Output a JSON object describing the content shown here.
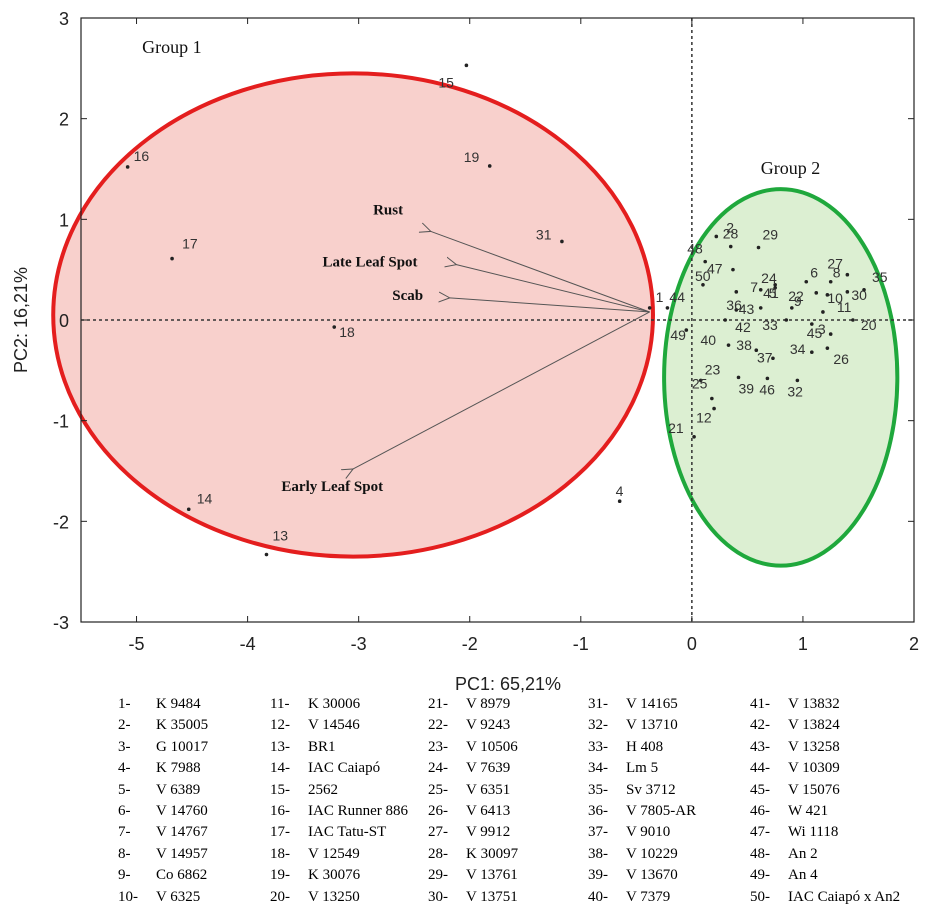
{
  "chart_data": {
    "type": "scatter",
    "xlabel": "PC1: 65,21%",
    "ylabel": "PC2: 16,21%",
    "xlim": [
      -5.5,
      2.0
    ],
    "ylim": [
      -3,
      3
    ],
    "xticks": [
      -5,
      -4,
      -3,
      -2,
      -1,
      0,
      1,
      2
    ],
    "yticks": [
      -3,
      -2,
      -1,
      0,
      1,
      2,
      3
    ],
    "colors": {
      "group1_stroke": "#e41e1e",
      "group1_fill": "#f8d0cc",
      "group2_stroke": "#1fa83c",
      "group2_fill": "#dcefd2"
    },
    "groups": [
      {
        "name": "Group 1",
        "center": [
          -3.05,
          0.05
        ],
        "radius": [
          2.7,
          2.4
        ],
        "label_at": [
          -4.95,
          2.65
        ]
      },
      {
        "name": "Group 2",
        "center": [
          0.8,
          -0.57
        ],
        "radius": [
          1.05,
          1.87
        ],
        "label_at": [
          0.62,
          1.45
        ]
      }
    ],
    "vectors": [
      {
        "name": "Rust",
        "to": [
          -2.35,
          0.88
        ],
        "label_at": [
          -2.6,
          1.05
        ]
      },
      {
        "name": "Late Leaf Spot",
        "to": [
          -2.12,
          0.55
        ],
        "label_at": [
          -2.47,
          0.53
        ]
      },
      {
        "name": "Scab",
        "to": [
          -2.18,
          0.22
        ],
        "label_at": [
          -2.42,
          0.2
        ]
      },
      {
        "name": "Early Leaf Spot",
        "to": [
          -3.05,
          -1.48
        ],
        "label_at": [
          -2.78,
          -1.7
        ]
      }
    ],
    "vector_origin": [
      -0.38,
      0.08
    ],
    "points": [
      {
        "id": "1",
        "x": -0.38,
        "y": 0.12,
        "dx": 6,
        "dy": -6
      },
      {
        "id": "2",
        "x": 0.22,
        "y": 0.83,
        "dx": 10,
        "dy": -4
      },
      {
        "id": "3",
        "x": 1.08,
        "y": -0.04,
        "dx": 6,
        "dy": 10
      },
      {
        "id": "4",
        "x": -0.65,
        "y": -1.8,
        "dx": -4,
        "dy": -5
      },
      {
        "id": "5",
        "x": 0.62,
        "y": 0.3,
        "dx": 8,
        "dy": 8
      },
      {
        "id": "6",
        "x": 1.03,
        "y": 0.38,
        "dx": 4,
        "dy": -4
      },
      {
        "id": "7",
        "x": 0.4,
        "y": 0.28,
        "dx": 14,
        "dy": 0
      },
      {
        "id": "8",
        "x": 1.25,
        "y": 0.38,
        "dx": 2,
        "dy": -4
      },
      {
        "id": "9",
        "x": 0.9,
        "y": 0.12,
        "dx": 2,
        "dy": -2
      },
      {
        "id": "10",
        "x": 1.22,
        "y": 0.25,
        "dx": 0,
        "dy": 8
      },
      {
        "id": "11",
        "x": 1.18,
        "y": 0.08,
        "dx": 14,
        "dy": 0
      },
      {
        "id": "12",
        "x": 0.2,
        "y": -0.88,
        "dx": -18,
        "dy": 14
      },
      {
        "id": "13",
        "x": -3.83,
        "y": -2.33,
        "dx": 6,
        "dy": -14
      },
      {
        "id": "14",
        "x": -4.53,
        "y": -1.88,
        "dx": 8,
        "dy": -6
      },
      {
        "id": "15",
        "x": -2.03,
        "y": 2.53,
        "dx": -28,
        "dy": 22
      },
      {
        "id": "16",
        "x": -5.08,
        "y": 1.52,
        "dx": 6,
        "dy": -6
      },
      {
        "id": "17",
        "x": -4.68,
        "y": 0.61,
        "dx": 10,
        "dy": -10
      },
      {
        "id": "18",
        "x": -3.22,
        "y": -0.07,
        "dx": 5,
        "dy": 10
      },
      {
        "id": "19",
        "x": -1.82,
        "y": 1.53,
        "dx": -26,
        "dy": -4
      },
      {
        "id": "20",
        "x": 1.45,
        "y": 0.0,
        "dx": 8,
        "dy": 10
      },
      {
        "id": "21",
        "x": 0.02,
        "y": -1.16,
        "dx": -26,
        "dy": -4
      },
      {
        "id": "22",
        "x": 1.12,
        "y": 0.27,
        "dx": -28,
        "dy": 8
      },
      {
        "id": "23",
        "x": 0.08,
        "y": -0.6,
        "dx": 4,
        "dy": -6
      },
      {
        "id": "24",
        "x": 0.75,
        "y": 0.35,
        "dx": -14,
        "dy": -2
      },
      {
        "id": "25",
        "x": 0.18,
        "y": -0.78,
        "dx": -20,
        "dy": -10
      },
      {
        "id": "26",
        "x": 1.22,
        "y": -0.28,
        "dx": 6,
        "dy": 16
      },
      {
        "id": "27",
        "x": 1.4,
        "y": 0.45,
        "dx": -20,
        "dy": -6
      },
      {
        "id": "28",
        "x": 0.35,
        "y": 0.73,
        "dx": -8,
        "dy": -8
      },
      {
        "id": "29",
        "x": 0.6,
        "y": 0.72,
        "dx": 4,
        "dy": -8
      },
      {
        "id": "30",
        "x": 1.4,
        "y": 0.28,
        "dx": 4,
        "dy": 8
      },
      {
        "id": "31",
        "x": -1.17,
        "y": 0.78,
        "dx": -26,
        "dy": -2
      },
      {
        "id": "32",
        "x": 0.95,
        "y": -0.6,
        "dx": -10,
        "dy": 16
      },
      {
        "id": "33",
        "x": 0.85,
        "y": 0.0,
        "dx": -24,
        "dy": 10
      },
      {
        "id": "34",
        "x": 1.08,
        "y": -0.32,
        "dx": -22,
        "dy": 2
      },
      {
        "id": "35",
        "x": 1.55,
        "y": 0.3,
        "dx": 8,
        "dy": -8
      },
      {
        "id": "36",
        "x": 0.4,
        "y": 0.1,
        "dx": -10,
        "dy": 0
      },
      {
        "id": "37",
        "x": 0.73,
        "y": -0.38,
        "dx": -16,
        "dy": 4
      },
      {
        "id": "38",
        "x": 0.58,
        "y": -0.3,
        "dx": -20,
        "dy": 0
      },
      {
        "id": "39",
        "x": 0.42,
        "y": -0.57,
        "dx": 0,
        "dy": 16
      },
      {
        "id": "40",
        "x": 0.33,
        "y": -0.25,
        "dx": -28,
        "dy": 0
      },
      {
        "id": "41",
        "x": 0.75,
        "y": 0.32,
        "dx": -12,
        "dy": 10
      },
      {
        "id": "42",
        "x": 0.3,
        "y": 0.0,
        "dx": 10,
        "dy": 12
      },
      {
        "id": "43",
        "x": 0.62,
        "y": 0.12,
        "dx": -22,
        "dy": 6
      },
      {
        "id": "44",
        "x": -0.22,
        "y": 0.12,
        "dx": 2,
        "dy": -6
      },
      {
        "id": "45",
        "x": 1.25,
        "y": -0.14,
        "dx": -24,
        "dy": 4
      },
      {
        "id": "46",
        "x": 0.68,
        "y": -0.58,
        "dx": -8,
        "dy": 16
      },
      {
        "id": "47",
        "x": 0.37,
        "y": 0.5,
        "dx": -26,
        "dy": 4
      },
      {
        "id": "48",
        "x": 0.12,
        "y": 0.58,
        "dx": -18,
        "dy": -8
      },
      {
        "id": "49",
        "x": -0.05,
        "y": -0.1,
        "dx": -16,
        "dy": 10
      },
      {
        "id": "50",
        "x": 0.1,
        "y": 0.35,
        "dx": -8,
        "dy": -4
      }
    ]
  },
  "legend": [
    [
      {
        "num": "1-",
        "name": "K 9484"
      },
      {
        "num": "2-",
        "name": "K 35005"
      },
      {
        "num": "3-",
        "name": "G 10017"
      },
      {
        "num": "4-",
        "name": "K 7988"
      },
      {
        "num": "5-",
        "name": "V 6389"
      },
      {
        "num": "6-",
        "name": "V 14760"
      },
      {
        "num": "7-",
        "name": "V 14767"
      },
      {
        "num": "8-",
        "name": "V 14957"
      },
      {
        "num": "9-",
        "name": "Co 6862"
      },
      {
        "num": "10-",
        "name": "V 6325"
      }
    ],
    [
      {
        "num": "11-",
        "name": "K 30006"
      },
      {
        "num": "12-",
        "name": "V 14546"
      },
      {
        "num": "13-",
        "name": "BR1"
      },
      {
        "num": "14-",
        "name": "IAC Caiapó"
      },
      {
        "num": "15-",
        "name": "2562"
      },
      {
        "num": "16-",
        "name": "IAC Runner 886"
      },
      {
        "num": "17-",
        "name": "IAC Tatu-ST"
      },
      {
        "num": "18-",
        "name": "V 12549"
      },
      {
        "num": "19-",
        "name": "K 30076"
      },
      {
        "num": "20-",
        "name": "V 13250"
      }
    ],
    [
      {
        "num": "21-",
        "name": "V 8979"
      },
      {
        "num": "22-",
        "name": "V 9243"
      },
      {
        "num": "23-",
        "name": "V 10506"
      },
      {
        "num": "24-",
        "name": "V 7639"
      },
      {
        "num": "25-",
        "name": "V 6351"
      },
      {
        "num": "26-",
        "name": "V 6413"
      },
      {
        "num": "27-",
        "name": "V 9912"
      },
      {
        "num": "28-",
        "name": "K 30097"
      },
      {
        "num": "29-",
        "name": "V 13761"
      },
      {
        "num": "30-",
        "name": "V 13751"
      }
    ],
    [
      {
        "num": "31-",
        "name": "V 14165"
      },
      {
        "num": "32-",
        "name": "V 13710"
      },
      {
        "num": "33-",
        "name": "H 408"
      },
      {
        "num": "34-",
        "name": "Lm 5"
      },
      {
        "num": "35-",
        "name": "Sv 3712"
      },
      {
        "num": "36-",
        "name": "V 7805-AR"
      },
      {
        "num": "37-",
        "name": "V 9010"
      },
      {
        "num": "38-",
        "name": "V 10229"
      },
      {
        "num": "39-",
        "name": "V 13670"
      },
      {
        "num": "40-",
        "name": "V 7379"
      }
    ],
    [
      {
        "num": "41-",
        "name": "V 13832"
      },
      {
        "num": "42-",
        "name": "V 13824"
      },
      {
        "num": "43-",
        "name": "V 13258"
      },
      {
        "num": "44-",
        "name": "V 10309"
      },
      {
        "num": "45-",
        "name": "V 15076"
      },
      {
        "num": "46-",
        "name": "W 421"
      },
      {
        "num": "47-",
        "name": "Wi 1118"
      },
      {
        "num": "48-",
        "name": "An 2"
      },
      {
        "num": "49-",
        "name": "An 4"
      },
      {
        "num": "50-",
        "name": "IAC Caiapó x An2"
      }
    ]
  ]
}
